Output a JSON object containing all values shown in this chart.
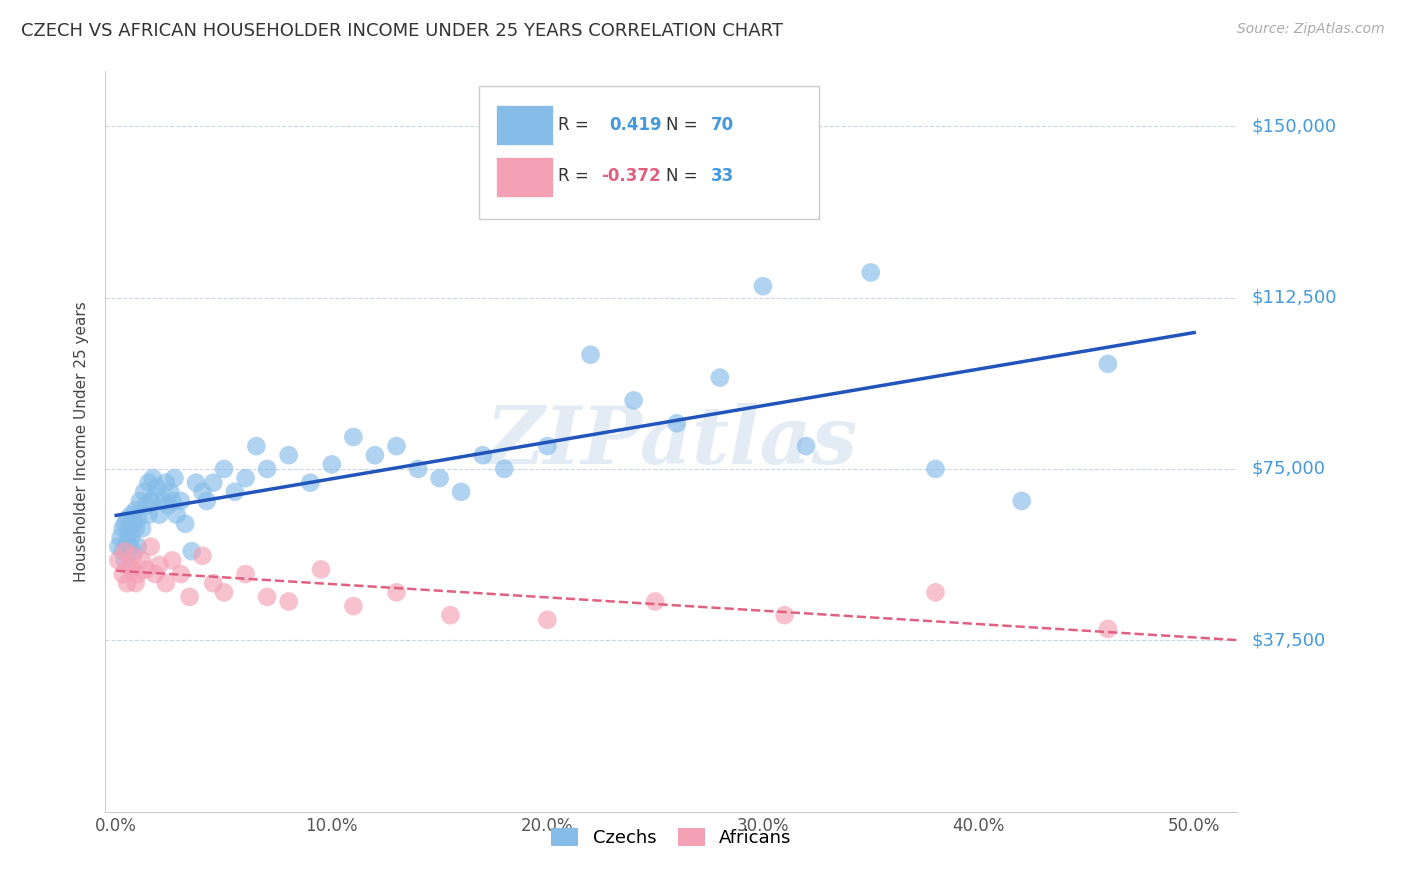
{
  "title": "CZECH VS AFRICAN HOUSEHOLDER INCOME UNDER 25 YEARS CORRELATION CHART",
  "source": "Source: ZipAtlas.com",
  "ylabel": "Householder Income Under 25 years",
  "xlabel_ticks": [
    "0.0%",
    "10.0%",
    "20.0%",
    "30.0%",
    "40.0%",
    "50.0%"
  ],
  "xlabel_vals": [
    0.0,
    0.1,
    0.2,
    0.3,
    0.4,
    0.5
  ],
  "ytick_labels": [
    "$37,500",
    "$75,000",
    "$112,500",
    "$150,000"
  ],
  "ytick_vals": [
    37500,
    75000,
    112500,
    150000
  ],
  "ylim": [
    0,
    162000
  ],
  "xlim": [
    -0.005,
    0.52
  ],
  "czech_R": 0.419,
  "czech_N": 70,
  "african_R": -0.372,
  "african_N": 33,
  "czech_color": "#85BCE8",
  "african_color": "#F4A0B5",
  "trend_czech_color": "#2255BB",
  "trend_african_color": "#E06080",
  "background_color": "#FFFFFF",
  "grid_color": "#C8D8E8",
  "watermark": "ZIPatlas",
  "legend_labels": [
    "Czechs",
    "Africans"
  ],
  "czech_scatter_x": [
    0.001,
    0.002,
    0.003,
    0.003,
    0.004,
    0.004,
    0.005,
    0.005,
    0.006,
    0.006,
    0.007,
    0.007,
    0.008,
    0.008,
    0.009,
    0.009,
    0.01,
    0.01,
    0.011,
    0.012,
    0.013,
    0.014,
    0.015,
    0.015,
    0.016,
    0.017,
    0.018,
    0.019,
    0.02,
    0.022,
    0.023,
    0.024,
    0.025,
    0.026,
    0.027,
    0.028,
    0.03,
    0.032,
    0.035,
    0.037,
    0.04,
    0.042,
    0.045,
    0.05,
    0.055,
    0.06,
    0.065,
    0.07,
    0.08,
    0.09,
    0.1,
    0.11,
    0.12,
    0.13,
    0.14,
    0.15,
    0.16,
    0.17,
    0.18,
    0.2,
    0.22,
    0.24,
    0.26,
    0.28,
    0.3,
    0.32,
    0.35,
    0.38,
    0.42,
    0.46
  ],
  "czech_scatter_y": [
    58000,
    60000,
    57000,
    62000,
    55000,
    63000,
    59000,
    64000,
    58000,
    61000,
    60000,
    65000,
    57000,
    63000,
    62000,
    66000,
    58000,
    64000,
    68000,
    62000,
    70000,
    67000,
    65000,
    72000,
    68000,
    73000,
    69000,
    71000,
    65000,
    68000,
    72000,
    67000,
    70000,
    68000,
    73000,
    65000,
    68000,
    63000,
    57000,
    72000,
    70000,
    68000,
    72000,
    75000,
    70000,
    73000,
    80000,
    75000,
    78000,
    72000,
    76000,
    82000,
    78000,
    80000,
    75000,
    73000,
    70000,
    78000,
    75000,
    80000,
    100000,
    90000,
    85000,
    95000,
    115000,
    80000,
    118000,
    75000,
    68000,
    98000
  ],
  "african_scatter_x": [
    0.001,
    0.003,
    0.004,
    0.005,
    0.006,
    0.007,
    0.008,
    0.009,
    0.01,
    0.012,
    0.014,
    0.016,
    0.018,
    0.02,
    0.023,
    0.026,
    0.03,
    0.034,
    0.04,
    0.045,
    0.05,
    0.06,
    0.07,
    0.08,
    0.095,
    0.11,
    0.13,
    0.155,
    0.2,
    0.25,
    0.31,
    0.38,
    0.46
  ],
  "african_scatter_y": [
    55000,
    52000,
    57000,
    50000,
    54000,
    53000,
    56000,
    50000,
    52000,
    55000,
    53000,
    58000,
    52000,
    54000,
    50000,
    55000,
    52000,
    47000,
    56000,
    50000,
    48000,
    52000,
    47000,
    46000,
    53000,
    45000,
    48000,
    43000,
    42000,
    46000,
    43000,
    48000,
    40000
  ]
}
